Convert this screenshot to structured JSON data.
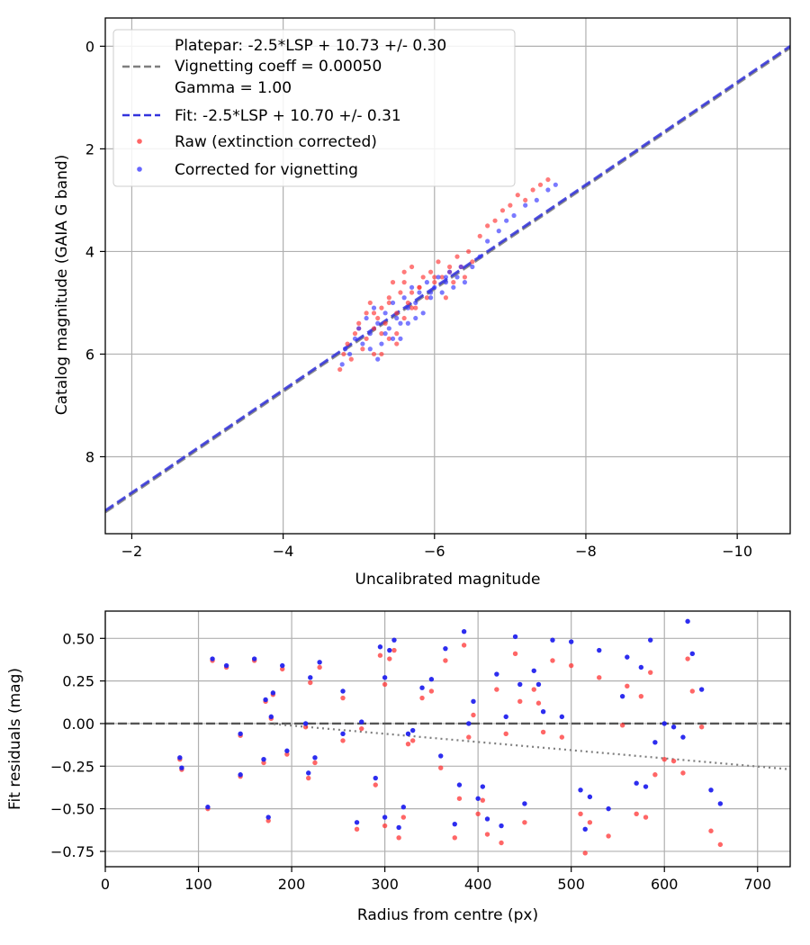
{
  "chart_data": [
    {
      "type": "scatter",
      "xlabel": "Uncalibrated magnitude",
      "ylabel": "Catalog magnitude (GAIA G band)",
      "xlim": [
        -1.65,
        -10.7
      ],
      "ylim": [
        9.5,
        -0.55
      ],
      "x_inverted": true,
      "y_inverted": true,
      "grid": true,
      "legend_position": "top-left",
      "x_ticks": [
        {
          "value": -2,
          "label": "−2"
        },
        {
          "value": -4,
          "label": "−4"
        },
        {
          "value": -6,
          "label": "−6"
        },
        {
          "value": -8,
          "label": "−8"
        },
        {
          "value": -10,
          "label": "−10"
        }
      ],
      "y_ticks": [
        {
          "value": 0,
          "label": "0"
        },
        {
          "value": 2,
          "label": "2"
        },
        {
          "value": 4,
          "label": "4"
        },
        {
          "value": 6,
          "label": "6"
        },
        {
          "value": 8,
          "label": "8"
        }
      ],
      "legend": [
        {
          "kind": "line",
          "color": "#7f7f7f",
          "label": "Platepar: -2.5*LSP + 10.73 +/- 0.30\nVignetting coeff = 0.00050\nGamma = 1.00"
        },
        {
          "kind": "line",
          "color": "#3333dd",
          "label": "Fit: -2.5*LSP + 10.70 +/- 0.31"
        },
        {
          "kind": "marker",
          "color": "#ff3333",
          "label": "Raw (extinction corrected)"
        },
        {
          "kind": "marker",
          "color": "#3333ff",
          "label": "Corrected for vignetting"
        }
      ],
      "series": [
        {
          "name": "Platepar: -2.5*LSP + 10.73 +/- 0.30",
          "kind": "line",
          "style": "dashed",
          "color": "#7f7f7f",
          "slope": 1,
          "intercept": 10.73
        },
        {
          "name": "Fit: -2.5*LSP + 10.70 +/- 0.31",
          "kind": "line",
          "style": "dashed",
          "color": "#3333dd",
          "slope": 1,
          "intercept": 10.7
        },
        {
          "name": "Raw (extinction corrected)",
          "kind": "scatter",
          "color": "#ff3333",
          "x": [
            -4.75,
            -4.8,
            -4.85,
            -4.9,
            -4.95,
            -5.0,
            -5.05,
            -5.1,
            -5.1,
            -5.15,
            -5.2,
            -5.2,
            -5.25,
            -5.3,
            -5.3,
            -5.35,
            -5.4,
            -5.4,
            -5.45,
            -5.5,
            -5.5,
            -5.55,
            -5.6,
            -5.6,
            -5.65,
            -5.7,
            -5.7,
            -5.75,
            -5.8,
            -5.85,
            -5.9,
            -5.95,
            -6.0,
            -6.05,
            -6.1,
            -6.15,
            -6.2,
            -6.25,
            -6.3,
            -6.35,
            -6.4,
            -6.45,
            -6.5,
            -6.6,
            -6.7,
            -6.8,
            -6.9,
            -7.0,
            -7.1,
            -7.2,
            -7.3,
            -7.4,
            -7.5,
            -5.0,
            -5.2,
            -5.4,
            -5.6,
            -5.8,
            -6.0,
            -6.2,
            -5.3,
            -5.5,
            -5.7
          ],
          "y": [
            6.3,
            6.0,
            5.8,
            6.1,
            5.6,
            5.4,
            5.9,
            5.2,
            5.7,
            5.0,
            5.5,
            6.0,
            5.3,
            5.1,
            5.6,
            5.4,
            4.9,
            5.7,
            4.6,
            5.2,
            5.8,
            4.8,
            5.3,
            4.6,
            5.0,
            4.8,
            4.3,
            5.1,
            4.7,
            4.5,
            4.9,
            4.4,
            4.6,
            4.2,
            4.5,
            4.9,
            4.4,
            4.6,
            4.1,
            4.3,
            4.5,
            4.0,
            4.2,
            3.7,
            3.5,
            3.4,
            3.2,
            3.1,
            2.9,
            3.0,
            2.8,
            2.7,
            2.6,
            5.5,
            5.2,
            5.0,
            4.4,
            4.7,
            4.5,
            4.3,
            6.0,
            5.6,
            5.1
          ]
        },
        {
          "name": "Corrected for vignetting",
          "kind": "scatter",
          "color": "#3333ff",
          "x": [
            -4.78,
            -4.82,
            -4.88,
            -4.95,
            -5.0,
            -5.05,
            -5.1,
            -5.15,
            -5.2,
            -5.25,
            -5.3,
            -5.35,
            -5.4,
            -5.45,
            -5.5,
            -5.55,
            -5.6,
            -5.65,
            -5.7,
            -5.75,
            -5.8,
            -5.85,
            -5.9,
            -5.95,
            -6.0,
            -6.05,
            -6.1,
            -6.15,
            -6.2,
            -6.25,
            -6.3,
            -6.35,
            -6.4,
            -6.5,
            -6.6,
            -6.7,
            -6.85,
            -6.95,
            -7.05,
            -7.2,
            -7.35,
            -7.5,
            -7.6,
            -5.15,
            -5.35,
            -5.55,
            -5.75,
            -5.95,
            -6.15,
            -5.25,
            -5.45,
            -5.65
          ],
          "y": [
            6.2,
            5.9,
            6.0,
            5.7,
            5.5,
            5.8,
            5.3,
            5.6,
            5.1,
            5.4,
            5.8,
            5.2,
            5.5,
            5.0,
            5.3,
            5.7,
            4.9,
            5.1,
            4.7,
            5.0,
            4.8,
            5.2,
            4.6,
            4.9,
            4.7,
            4.5,
            4.8,
            4.6,
            4.4,
            4.7,
            4.5,
            4.3,
            4.6,
            4.3,
            4.1,
            3.8,
            3.6,
            3.4,
            3.3,
            3.1,
            3.0,
            2.8,
            2.7,
            5.9,
            5.6,
            5.4,
            5.3,
            4.8,
            4.5,
            6.1,
            5.7,
            5.4
          ]
        }
      ]
    },
    {
      "type": "scatter",
      "xlabel": "Radius from centre (px)",
      "ylabel": "Fit residuals (mag)",
      "xlim": [
        0,
        735
      ],
      "ylim": [
        -0.84,
        0.66
      ],
      "grid": true,
      "x_ticks": [
        {
          "value": 0,
          "label": "0"
        },
        {
          "value": 100,
          "label": "100"
        },
        {
          "value": 200,
          "label": "200"
        },
        {
          "value": 300,
          "label": "300"
        },
        {
          "value": 400,
          "label": "400"
        },
        {
          "value": 500,
          "label": "500"
        },
        {
          "value": 600,
          "label": "600"
        },
        {
          "value": 700,
          "label": "700"
        }
      ],
      "y_ticks": [
        {
          "value": 0.5,
          "label": "0.50"
        },
        {
          "value": 0.25,
          "label": "0.25"
        },
        {
          "value": 0.0,
          "label": "0.00"
        },
        {
          "value": -0.25,
          "label": "−0.25"
        },
        {
          "value": -0.5,
          "label": "−0.50"
        },
        {
          "value": -0.75,
          "label": "−0.75"
        }
      ],
      "series": [
        {
          "name": "zero-line",
          "kind": "hline",
          "style": "dashed",
          "color": "#555555",
          "y": 0
        },
        {
          "name": "vignetting-curve",
          "kind": "curve",
          "style": "dotted",
          "color": "#7f7f7f",
          "vignetting_coeff": 0.0005,
          "start_radius": 175,
          "end_radius": 735
        },
        {
          "name": "Raw (extinction corrected)",
          "kind": "scatter",
          "color": "#ff3333",
          "x": [
            80,
            82,
            110,
            115,
            130,
            145,
            145,
            160,
            170,
            172,
            175,
            178,
            180,
            190,
            195,
            215,
            218,
            220,
            225,
            230,
            255,
            255,
            270,
            275,
            290,
            295,
            300,
            300,
            305,
            310,
            315,
            320,
            325,
            330,
            340,
            350,
            360,
            365,
            375,
            380,
            385,
            390,
            395,
            400,
            405,
            410,
            420,
            425,
            430,
            440,
            445,
            450,
            460,
            465,
            470,
            480,
            490,
            500,
            510,
            515,
            520,
            530,
            540,
            555,
            560,
            570,
            575,
            580,
            585,
            590,
            600,
            610,
            620,
            625,
            630,
            640,
            650,
            660
          ],
          "y": [
            -0.21,
            -0.27,
            -0.5,
            0.37,
            0.33,
            -0.07,
            -0.31,
            0.37,
            -0.23,
            0.13,
            -0.57,
            0.03,
            0.17,
            0.32,
            -0.18,
            -0.02,
            -0.32,
            0.24,
            -0.23,
            0.33,
            -0.1,
            0.15,
            -0.62,
            -0.03,
            -0.36,
            0.4,
            0.23,
            -0.6,
            0.38,
            0.43,
            -0.67,
            -0.55,
            -0.12,
            -0.1,
            0.15,
            0.19,
            -0.26,
            0.37,
            -0.67,
            -0.44,
            0.46,
            -0.08,
            0.05,
            -0.53,
            -0.45,
            -0.65,
            0.2,
            -0.7,
            -0.06,
            0.41,
            0.13,
            -0.58,
            0.2,
            0.12,
            -0.05,
            0.37,
            -0.08,
            0.34,
            -0.53,
            -0.76,
            -0.58,
            0.27,
            -0.66,
            -0.01,
            0.22,
            -0.53,
            0.16,
            -0.55,
            0.3,
            -0.3,
            -0.21,
            -0.22,
            -0.29,
            0.38,
            0.19,
            -0.02,
            -0.63,
            -0.71
          ]
        },
        {
          "name": "Corrected for vignetting",
          "kind": "scatter",
          "color": "#2222ee",
          "x": [
            80,
            82,
            110,
            115,
            130,
            145,
            145,
            160,
            170,
            172,
            175,
            178,
            180,
            190,
            195,
            215,
            218,
            220,
            225,
            230,
            255,
            255,
            270,
            275,
            290,
            295,
            300,
            300,
            305,
            310,
            315,
            320,
            325,
            330,
            340,
            350,
            360,
            365,
            375,
            380,
            385,
            390,
            395,
            400,
            405,
            410,
            420,
            425,
            430,
            440,
            445,
            450,
            460,
            465,
            470,
            480,
            490,
            500,
            510,
            515,
            520,
            530,
            540,
            555,
            560,
            570,
            575,
            580,
            585,
            590,
            600,
            610,
            620,
            625,
            630,
            640,
            650,
            660
          ],
          "y": [
            -0.2,
            -0.26,
            -0.49,
            0.38,
            0.34,
            -0.06,
            -0.3,
            0.38,
            -0.21,
            0.14,
            -0.55,
            0.04,
            0.18,
            0.34,
            -0.16,
            0.0,
            -0.29,
            0.27,
            -0.2,
            0.36,
            -0.06,
            0.19,
            -0.58,
            0.01,
            -0.32,
            0.45,
            0.27,
            -0.55,
            0.43,
            0.49,
            -0.61,
            -0.49,
            -0.06,
            -0.04,
            0.21,
            0.26,
            -0.19,
            0.44,
            -0.59,
            -0.36,
            0.54,
            0.0,
            0.13,
            -0.44,
            -0.37,
            -0.56,
            0.29,
            -0.6,
            0.04,
            0.51,
            0.23,
            -0.47,
            0.31,
            0.23,
            0.07,
            0.49,
            0.04,
            0.48,
            -0.39,
            -0.62,
            -0.43,
            0.43,
            -0.5,
            0.16,
            0.39,
            -0.35,
            0.33,
            -0.37,
            0.49,
            -0.11,
            0.0,
            -0.02,
            -0.08,
            0.6,
            0.41,
            0.2,
            -0.39,
            -0.47
          ]
        }
      ]
    }
  ]
}
